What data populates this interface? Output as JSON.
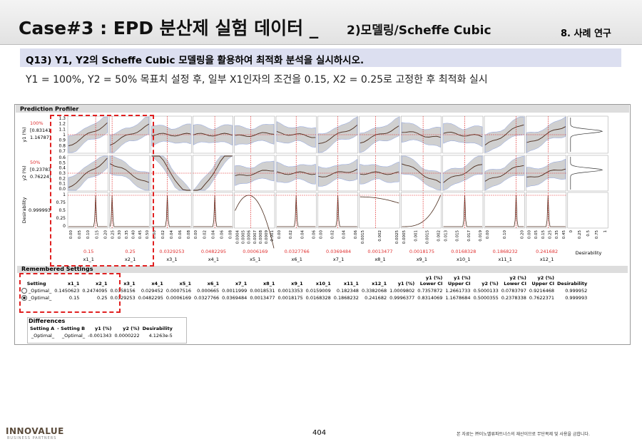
{
  "header": {
    "title": "Case#3 : EPD 분산제 실험 데이터 _",
    "subtitle": "2)모델링/Scheffe Cubic",
    "section": "8. 사례 연구"
  },
  "question": "Q13) Y1, Y2의 Scheffe Cubic 모델링을 활용하여 최적화 분석을 실시하시오.",
  "instruction": "Y1 = 100%, Y2 = 50% 목표치 설정 후, 일부 X1인자의 조건을 0.15, X2 = 0.25로 고정한 후 최적화 실시",
  "profiler": {
    "title": "Prediction Profiler",
    "rows": [
      {
        "name": "y1 (%)",
        "target": "100%",
        "low": "[0.83141",
        "high": "1.16787]",
        "ticks": [
          "1.3",
          "1.2",
          "1.1",
          "1",
          "0.9",
          "0.8",
          "0.7"
        ]
      },
      {
        "name": "y2 (%)",
        "target": "50%",
        "low": "[0.23783",
        "high": "0.76224]",
        "ticks": [
          "0.6",
          "0.5",
          "0.4",
          "0.3",
          "0.2",
          "0.1",
          "0.0"
        ]
      },
      {
        "name": "Desirability",
        "value": "0.999993",
        "ticks": [
          "1",
          "0.75",
          "0.5",
          "0.25",
          "0"
        ]
      }
    ],
    "columns": [
      {
        "name": "x1_1",
        "value": "0.15",
        "ticks": [
          "0.00",
          "0.05",
          "0.10",
          "0.15",
          "0.20"
        ]
      },
      {
        "name": "x2_1",
        "value": "0.25",
        "ticks": [
          "0.25",
          "0.30",
          "0.35",
          "0.40",
          "0.45",
          "0.50"
        ]
      },
      {
        "name": "x3_1",
        "value": "0.0329253",
        "ticks": [
          "0.00",
          "0.02",
          "0.04",
          "0.06",
          "0.08"
        ]
      },
      {
        "name": "x4_1",
        "value": "0.0482295",
        "ticks": [
          "0.00",
          "0.02",
          "0.04",
          "0.06",
          "0.08"
        ]
      },
      {
        "name": "x5_1",
        "value": "0.0006169",
        "ticks": [
          "0.0004",
          "0.0005",
          "0.0006",
          "0.0007",
          "0.0008",
          "0.0009",
          "0.001"
        ]
      },
      {
        "name": "x6_1",
        "value": "0.0327766",
        "ticks": [
          "0.00",
          "0.02",
          "0.04",
          "0.06"
        ]
      },
      {
        "name": "x7_1",
        "value": "0.0369484",
        "ticks": [
          "0.00",
          "0.02",
          "0.04",
          "0.06"
        ]
      },
      {
        "name": "x8_1",
        "value": "0.0013477",
        "ticks": [
          "0.0015",
          "0.002",
          "0.0025"
        ]
      },
      {
        "name": "x9_1",
        "value": "0.0018175",
        "ticks": [
          "0.0005",
          "0.001",
          "0.0015",
          "0.002"
        ]
      },
      {
        "name": "x10_1",
        "value": "0.0168328",
        "ticks": [
          "0.013",
          "0.015",
          "0.017",
          "0.019"
        ]
      },
      {
        "name": "x11_1",
        "value": "0.1868232",
        "ticks": [
          "0.00",
          "0.10",
          "0.20"
        ]
      },
      {
        "name": "x12_1",
        "value": "0.241682",
        "ticks": [
          "0.00",
          "0.05",
          "0.15",
          "0.25",
          "0.35",
          "0.45"
        ]
      }
    ],
    "desirability": {
      "name": "Desirability",
      "ticks": [
        "0",
        "0.25",
        "0.5",
        "0.75",
        "1"
      ]
    }
  },
  "remembered": {
    "title": "Remembered Settings",
    "headers": [
      "Setting",
      "x1_1",
      "x2_1",
      "x3_1",
      "x4_1",
      "x5_1",
      "x6_1",
      "x7_1",
      "x8_1",
      "x9_1",
      "x10_1",
      "x11_1",
      "x12_1",
      "y1 (%)",
      "y1 (%)\nLower CI",
      "y1 (%)\nUpper CI",
      "y2 (%)",
      "y2 (%)\nLower CI",
      "y2 (%)\nUpper CI",
      "Desirability"
    ],
    "rows": [
      [
        "_Optimal_",
        "0.1450623",
        "0.2474095",
        "0.0358156",
        "0.029452",
        "0.0007516",
        "0.000665",
        "0.0011999",
        "0.0018531",
        "0.0013353",
        "0.0159009",
        "0.182348",
        "0.3382068",
        "1.0009802",
        "0.7357872",
        "1.2661733",
        "0.5000133",
        "0.0783797",
        "0.9216468",
        "0.999952"
      ],
      [
        "_Optimal_",
        "0.15",
        "0.25",
        "0.0329253",
        "0.0482295",
        "0.0006169",
        "0.0327766",
        "0.0369484",
        "0.0013477",
        "0.0018175",
        "0.0168328",
        "0.1868232",
        "0.241682",
        "0.9996377",
        "0.8314069",
        "1.1678684",
        "0.5000355",
        "0.2378338",
        "0.7622371",
        "0.999993"
      ]
    ]
  },
  "differences": {
    "title": "Differences",
    "headers": [
      "Setting A",
      "- Setting B",
      "y1 (%)",
      "y2 (%)",
      "Desirability"
    ],
    "rows": [
      [
        "_Optimal_",
        "_Optimal_",
        "-0.001343",
        "0.0000222",
        "4.1263e-5"
      ]
    ]
  },
  "footer": {
    "brand": "INNOVALUE",
    "tagline": "BUSINESS PARTNERS",
    "page": "404",
    "notice": "본 자료는 ㈜이노밸류파트너스의 재산이므로 무단복제 및 사용을 금합니다."
  }
}
